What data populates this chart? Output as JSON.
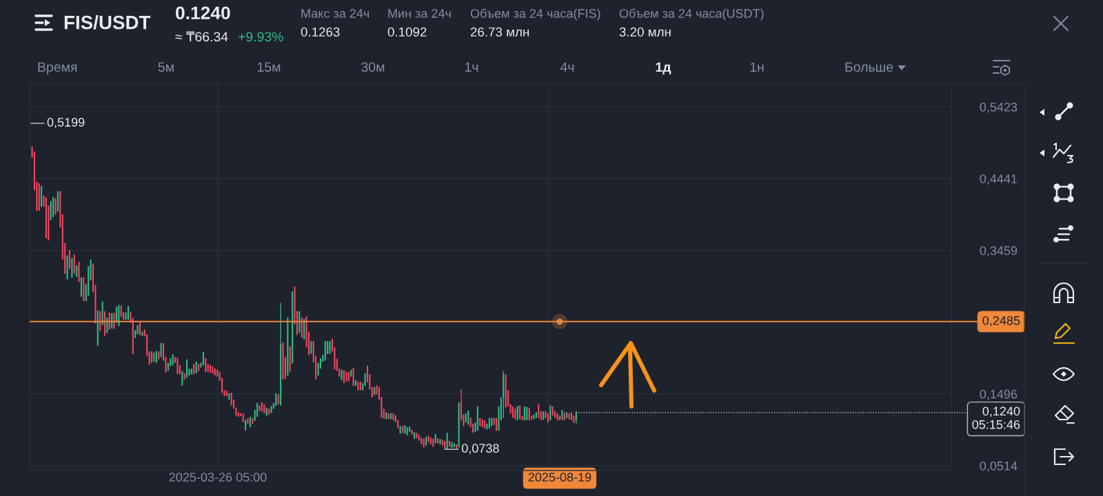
{
  "chart_data": {
    "type": "candlestick",
    "title": "FIS/USDT",
    "annotations": [
      "0.1240",
      "≈ ₸66.34",
      "+9.93%",
      "Макс за 24ч",
      "0.1263",
      "Мин за 24ч",
      "0.1092",
      "Объем за 24 часа(FIS)",
      "26.73 млн",
      "Объем за 24 часа(USDT)",
      "3.20 млн",
      "Время",
      "5м",
      "15м",
      "30м",
      "1ч",
      "4ч",
      "1д",
      "1н",
      "Больше",
      "0,5199",
      {
        "text": "0,0738",
        "x": "2025-07-01",
        "y": 0.0738
      }
    ],
    "x": [
      "2025-01-06",
      "2025-01-07",
      "2025-01-08",
      "2025-01-09",
      "2025-01-10",
      "2025-01-11",
      "2025-01-12",
      "2025-01-13",
      "2025-01-14",
      "2025-01-15",
      "2025-01-16",
      "2025-01-17",
      "2025-01-18",
      "2025-01-19",
      "2025-01-20",
      "2025-01-21",
      "2025-01-22",
      "2025-01-23",
      "2025-01-24",
      "2025-01-25",
      "2025-01-26",
      "2025-01-27",
      "2025-01-28",
      "2025-01-29",
      "2025-01-30",
      "2025-01-31",
      "2025-02-01",
      "2025-02-02",
      "2025-02-03",
      "2025-02-04",
      "2025-02-05",
      "2025-02-06",
      "2025-02-07",
      "2025-02-08",
      "2025-02-09",
      "2025-02-10",
      "2025-02-11",
      "2025-02-12",
      "2025-02-13",
      "2025-02-14",
      "2025-02-15",
      "2025-02-16",
      "2025-02-17",
      "2025-02-18",
      "2025-02-19",
      "2025-02-20",
      "2025-02-21",
      "2025-02-22",
      "2025-02-23",
      "2025-02-24",
      "2025-02-25",
      "2025-02-26",
      "2025-02-27",
      "2025-02-28",
      "2025-03-01",
      "2025-03-02",
      "2025-03-03",
      "2025-03-04",
      "2025-03-05",
      "2025-03-06",
      "2025-03-07",
      "2025-03-08",
      "2025-03-09",
      "2025-03-10",
      "2025-03-11",
      "2025-03-12",
      "2025-03-13",
      "2025-03-14",
      "2025-03-15",
      "2025-03-16",
      "2025-03-17",
      "2025-03-18",
      "2025-03-19",
      "2025-03-20",
      "2025-03-21",
      "2025-03-22",
      "2025-03-23",
      "2025-03-24",
      "2025-03-25",
      "2025-03-26",
      "2025-03-27",
      "2025-03-28",
      "2025-03-29",
      "2025-03-30",
      "2025-03-31",
      "2025-04-01",
      "2025-04-02",
      "2025-04-03",
      "2025-04-04",
      "2025-04-05",
      "2025-04-06",
      "2025-04-07",
      "2025-04-08",
      "2025-04-09",
      "2025-04-10",
      "2025-04-11",
      "2025-04-12",
      "2025-04-13",
      "2025-04-14",
      "2025-04-15",
      "2025-04-16",
      "2025-04-17",
      "2025-04-18",
      "2025-04-19",
      "2025-04-20",
      "2025-04-21",
      "2025-04-22",
      "2025-04-23",
      "2025-04-24",
      "2025-04-25",
      "2025-04-26",
      "2025-04-27",
      "2025-04-28",
      "2025-04-29",
      "2025-04-30",
      "2025-05-01",
      "2025-05-02",
      "2025-05-03",
      "2025-05-04",
      "2025-05-05",
      "2025-05-06",
      "2025-05-07",
      "2025-05-08",
      "2025-05-09",
      "2025-05-10",
      "2025-05-11",
      "2025-05-12",
      "2025-05-13",
      "2025-05-14",
      "2025-05-15",
      "2025-05-16",
      "2025-05-17",
      "2025-05-18",
      "2025-05-19",
      "2025-05-20",
      "2025-05-21",
      "2025-05-22",
      "2025-05-23",
      "2025-05-24",
      "2025-05-25",
      "2025-05-26",
      "2025-05-27",
      "2025-05-28",
      "2025-05-29",
      "2025-05-30",
      "2025-05-31",
      "2025-06-01",
      "2025-06-02",
      "2025-06-03",
      "2025-06-04",
      "2025-06-05",
      "2025-06-06",
      "2025-06-07",
      "2025-06-08",
      "2025-06-09",
      "2025-06-10",
      "2025-06-11",
      "2025-06-12",
      "2025-06-13",
      "2025-06-14",
      "2025-06-15",
      "2025-06-16",
      "2025-06-17",
      "2025-06-18",
      "2025-06-19",
      "2025-06-20",
      "2025-06-21",
      "2025-06-22",
      "2025-06-23",
      "2025-06-24",
      "2025-06-25",
      "2025-06-26",
      "2025-06-27",
      "2025-06-28",
      "2025-06-29",
      "2025-06-30",
      "2025-07-01",
      "2025-07-02",
      "2025-07-03",
      "2025-07-04",
      "2025-07-05",
      "2025-07-06",
      "2025-07-07",
      "2025-07-08",
      "2025-07-09",
      "2025-07-10",
      "2025-07-11",
      "2025-07-12",
      "2025-07-13",
      "2025-07-14",
      "2025-07-15",
      "2025-07-16",
      "2025-07-17",
      "2025-07-18",
      "2025-07-19",
      "2025-07-20",
      "2025-07-21",
      "2025-07-22",
      "2025-07-23",
      "2025-07-24",
      "2025-07-25",
      "2025-07-26",
      "2025-07-27",
      "2025-07-28",
      "2025-07-29",
      "2025-07-30",
      "2025-07-31",
      "2025-08-01",
      "2025-08-02",
      "2025-08-03",
      "2025-08-04",
      "2025-08-05",
      "2025-08-06",
      "2025-08-07",
      "2025-08-08",
      "2025-08-09",
      "2025-08-10",
      "2025-08-11",
      "2025-08-12",
      "2025-08-13",
      "2025-08-14",
      "2025-08-15",
      "2025-08-16",
      "2025-08-17",
      "2025-08-18",
      "2025-08-19",
      "2025-08-20",
      "2025-08-21",
      "2025-08-22",
      "2025-08-23",
      "2025-08-24",
      "2025-08-25",
      "2025-08-26"
    ],
    "ohlc": [
      [
        0.4882,
        0.4882,
        0.4725,
        0.4725
      ],
      [
        0.481,
        0.481,
        0.4282,
        0.4282
      ],
      [
        0.4402,
        0.4402,
        0.4,
        0.4
      ],
      [
        0.4376,
        0.4376,
        0.4,
        0.4
      ],
      [
        0.4056,
        0.4339,
        0.4056,
        0.4339
      ],
      [
        0.4207,
        0.4207,
        0.4056,
        0.4056
      ],
      [
        0.4182,
        0.4182,
        0.3623,
        0.3623
      ],
      [
        0.4072,
        0.4072,
        0.3595,
        0.3595
      ],
      [
        0.3874,
        0.4135,
        0.3874,
        0.4135
      ],
      [
        0.3915,
        0.4188,
        0.3915,
        0.4188
      ],
      [
        0.4172,
        0.4172,
        0.3946,
        0.3946
      ],
      [
        0.3993,
        0.427,
        0.3993,
        0.427
      ],
      [
        0.427,
        0.427,
        0.3774,
        0.3774
      ],
      [
        0.3953,
        0.3953,
        0.3334,
        0.3334
      ],
      [
        0.356,
        0.356,
        0.3139,
        0.3139
      ],
      [
        0.3061,
        0.3391,
        0.3061,
        0.3391
      ],
      [
        0.3466,
        0.3466,
        0.3208,
        0.3208
      ],
      [
        0.3083,
        0.3356,
        0.3083,
        0.3356
      ],
      [
        0.3403,
        0.3403,
        0.3139,
        0.3139
      ],
      [
        0.3098,
        0.3255,
        0.3098,
        0.3255
      ],
      [
        0.3303,
        0.3303,
        0.3026,
        0.3026
      ],
      [
        0.2825,
        0.3089,
        0.2825,
        0.3089
      ],
      [
        0.3089,
        0.3089,
        0.2769,
        0.2769
      ],
      [
        0.2763,
        0.2995,
        0.2763,
        0.2995
      ],
      [
        0.2838,
        0.3246,
        0.2838,
        0.3246
      ],
      [
        0.3051,
        0.3334,
        0.3051,
        0.3334
      ],
      [
        0.3277,
        0.3277,
        0.2888,
        0.2888
      ],
      [
        0.2989,
        0.2989,
        0.2455,
        0.2455
      ],
      [
        0.2156,
        0.2637,
        0.2156,
        0.2637
      ],
      [
        0.2627,
        0.2627,
        0.2354,
        0.2354
      ],
      [
        0.2439,
        0.2759,
        0.2439,
        0.2759
      ],
      [
        0.2627,
        0.2627,
        0.2292,
        0.2292
      ],
      [
        0.2329,
        0.254,
        0.2329,
        0.254
      ],
      [
        0.2606,
        0.2606,
        0.2376,
        0.2376
      ],
      [
        0.2392,
        0.2602,
        0.2392,
        0.2602
      ],
      [
        0.2606,
        0.2606,
        0.2386,
        0.2386
      ],
      [
        0.247,
        0.269,
        0.247,
        0.269
      ],
      [
        0.2423,
        0.2712,
        0.2423,
        0.2712
      ],
      [
        0.2706,
        0.2706,
        0.2549,
        0.2549
      ],
      [
        0.2612,
        0.2612,
        0.2511,
        0.2511
      ],
      [
        0.2511,
        0.2612,
        0.2511,
        0.2612
      ],
      [
        0.2511,
        0.27,
        0.2511,
        0.27
      ],
      [
        0.2618,
        0.2618,
        0.247,
        0.247
      ],
      [
        0.2533,
        0.2533,
        0.204,
        0.204
      ],
      [
        0.226,
        0.2367,
        0.226,
        0.2367
      ],
      [
        0.2314,
        0.2439,
        0.2314,
        0.2439
      ],
      [
        0.2492,
        0.2492,
        0.2298,
        0.2298
      ],
      [
        0.2292,
        0.2345,
        0.2292,
        0.2345
      ],
      [
        0.2376,
        0.2376,
        0.2282,
        0.2282
      ],
      [
        0.2313,
        0.2313,
        0.2015,
        0.2015
      ],
      [
        0.2078,
        0.2078,
        0.1896,
        0.1896
      ],
      [
        0.2078,
        0.2078,
        0.1921,
        0.1921
      ],
      [
        0.1937,
        0.2062,
        0.1937,
        0.2062
      ],
      [
        0.1921,
        0.2084,
        0.1921,
        0.2084
      ],
      [
        0.2078,
        0.2078,
        0.1968,
        0.1968
      ],
      [
        0.1999,
        0.2194,
        0.1999,
        0.2194
      ],
      [
        0.2188,
        0.2188,
        0.1952,
        0.1952
      ],
      [
        0.1999,
        0.1999,
        0.1789,
        0.1789
      ],
      [
        0.1811,
        0.1921,
        0.1811,
        0.1921
      ],
      [
        0.1874,
        0.1984,
        0.1874,
        0.1984
      ],
      [
        0.189,
        0.2037,
        0.189,
        0.2037
      ],
      [
        0.1999,
        0.1999,
        0.1921,
        0.1921
      ],
      [
        0.199,
        0.199,
        0.177,
        0.177
      ],
      [
        0.189,
        0.189,
        0.1764,
        0.1764
      ],
      [
        0.1613,
        0.1811,
        0.1613,
        0.1811
      ],
      [
        0.178,
        0.178,
        0.1695,
        0.1695
      ],
      [
        0.1717,
        0.1968,
        0.1717,
        0.1968
      ],
      [
        0.1748,
        0.1842,
        0.1748,
        0.1842
      ],
      [
        0.1764,
        0.1842,
        0.1764,
        0.1842
      ],
      [
        0.1905,
        0.1905,
        0.1764,
        0.1764
      ],
      [
        0.178,
        0.1937,
        0.178,
        0.1937
      ],
      [
        0.1905,
        0.1905,
        0.1811,
        0.1811
      ],
      [
        0.1858,
        0.1921,
        0.1858,
        0.1921
      ],
      [
        0.189,
        0.2069,
        0.189,
        0.2069
      ],
      [
        0.1984,
        0.1984,
        0.1795,
        0.1795
      ],
      [
        0.1905,
        0.1905,
        0.1795,
        0.1795
      ],
      [
        0.189,
        0.189,
        0.1789,
        0.1789
      ],
      [
        0.1874,
        0.1874,
        0.1773,
        0.1773
      ],
      [
        0.1842,
        0.1842,
        0.1748,
        0.1748
      ],
      [
        0.1827,
        0.1827,
        0.1733,
        0.1733
      ],
      [
        0.1795,
        0.1795,
        0.1676,
        0.1676
      ],
      [
        0.1716,
        0.1716,
        0.1512,
        0.1512
      ],
      [
        0.155,
        0.155,
        0.1465,
        0.1465
      ],
      [
        0.1537,
        0.1537,
        0.1465,
        0.1465
      ],
      [
        0.1418,
        0.1506,
        0.1418,
        0.1506
      ],
      [
        0.1512,
        0.1512,
        0.1339,
        0.1339
      ],
      [
        0.1418,
        0.1418,
        0.1292,
        0.1292
      ],
      [
        0.1308,
        0.1308,
        0.1198,
        0.1198
      ],
      [
        0.1245,
        0.1245,
        0.1182,
        0.1182
      ],
      [
        0.123,
        0.123,
        0.1192,
        0.1192
      ],
      [
        0.1224,
        0.1224,
        0.111,
        0.111
      ],
      [
        0.0994,
        0.1142,
        0.0994,
        0.1142
      ],
      [
        0.1161,
        0.1161,
        0.1088,
        0.1088
      ],
      [
        0.1041,
        0.1182,
        0.1041,
        0.1182
      ],
      [
        0.1167,
        0.1167,
        0.1088,
        0.1088
      ],
      [
        0.1129,
        0.1277,
        0.1129,
        0.1277
      ],
      [
        0.1182,
        0.1371,
        0.1182,
        0.1371
      ],
      [
        0.1339,
        0.1339,
        0.1261,
        0.1261
      ],
      [
        0.138,
        0.138,
        0.1255,
        0.1255
      ],
      [
        0.1355,
        0.1355,
        0.123,
        0.123
      ],
      [
        0.1198,
        0.1308,
        0.1198,
        0.1308
      ],
      [
        0.1292,
        0.1292,
        0.1214,
        0.1214
      ],
      [
        0.1236,
        0.133,
        0.1236,
        0.133
      ],
      [
        0.1292,
        0.1371,
        0.1292,
        0.1371
      ],
      [
        0.133,
        0.1506,
        0.133,
        0.1506
      ],
      [
        0.1487,
        0.1487,
        0.1355,
        0.1355
      ],
      [
        0.1339,
        0.2743,
        0.1339,
        0.2172
      ],
      [
        0.2197,
        0.2197,
        0.1694,
        0.1694
      ],
      [
        0.1999,
        0.1999,
        0.1701,
        0.1701
      ],
      [
        0.1748,
        0.2542,
        0.1748,
        0.2542
      ],
      [
        0.2146,
        0.2146,
        0.1801,
        0.1801
      ],
      [
        0.1914,
        0.29,
        0.1914,
        0.29
      ],
      [
        0.2963,
        0.2963,
        0.2448,
        0.2448
      ],
      [
        0.2627,
        0.2627,
        0.2303,
        0.2303
      ],
      [
        0.2335,
        0.2627,
        0.2335,
        0.2627
      ],
      [
        0.2542,
        0.2542,
        0.2266,
        0.2266
      ],
      [
        0.2241,
        0.2523,
        0.2241,
        0.2523
      ],
      [
        0.2555,
        0.2555,
        0.2134,
        0.2134
      ],
      [
        0.2344,
        0.2344,
        0.203,
        0.203
      ],
      [
        0.2046,
        0.2219,
        0.2046,
        0.2219
      ],
      [
        0.2219,
        0.2219,
        0.1927,
        0.1927
      ],
      [
        0.2015,
        0.2015,
        0.1694,
        0.1694
      ],
      [
        0.1748,
        0.192,
        0.1748,
        0.192
      ],
      [
        0.1842,
        0.1983,
        0.1842,
        0.1983
      ],
      [
        0.1936,
        0.203,
        0.1936,
        0.203
      ],
      [
        0.1952,
        0.2219,
        0.1952,
        0.2219
      ],
      [
        0.204,
        0.2219,
        0.204,
        0.2219
      ],
      [
        0.2046,
        0.2219,
        0.2046,
        0.2219
      ],
      [
        0.225,
        0.225,
        0.2077,
        0.2077
      ],
      [
        0.2134,
        0.2134,
        0.1832,
        0.1832
      ],
      [
        0.1977,
        0.1977,
        0.181,
        0.181
      ],
      [
        0.1842,
        0.1842,
        0.1732,
        0.1732
      ],
      [
        0.1685,
        0.1826,
        0.1685,
        0.1826
      ],
      [
        0.182,
        0.182,
        0.1644,
        0.1644
      ],
      [
        0.1801,
        0.1801,
        0.1669,
        0.1669
      ],
      [
        0.1795,
        0.1795,
        0.1669,
        0.1669
      ],
      [
        0.1732,
        0.1826,
        0.1732,
        0.1826
      ],
      [
        0.1851,
        0.1851,
        0.1606,
        0.1606
      ],
      [
        0.1606,
        0.1685,
        0.1606,
        0.1685
      ],
      [
        0.1663,
        0.1663,
        0.1544,
        0.1544
      ],
      [
        0.1663,
        0.1663,
        0.1544,
        0.1544
      ],
      [
        0.1544,
        0.1644,
        0.1544,
        0.1644
      ],
      [
        0.1606,
        0.1779,
        0.1606,
        0.1779
      ],
      [
        0.1883,
        0.1883,
        0.1653,
        0.1653
      ],
      [
        0.1763,
        0.1763,
        0.1559,
        0.1559
      ],
      [
        0.1591,
        0.1591,
        0.1449,
        0.1449
      ],
      [
        0.1481,
        0.1591,
        0.1481,
        0.1591
      ],
      [
        0.1613,
        0.1613,
        0.1487,
        0.1487
      ],
      [
        0.1591,
        0.1591,
        0.1418,
        0.1418
      ],
      [
        0.1456,
        0.1456,
        0.1167,
        0.1167
      ],
      [
        0.1292,
        0.1292,
        0.1161,
        0.1161
      ],
      [
        0.1151,
        0.1245,
        0.1151,
        0.1245
      ],
      [
        0.123,
        0.123,
        0.1151,
        0.1151
      ],
      [
        0.1151,
        0.123,
        0.1151,
        0.123
      ],
      [
        0.123,
        0.123,
        0.1135,
        0.1135
      ],
      [
        0.1204,
        0.1204,
        0.111,
        0.111
      ],
      [
        0.1135,
        0.1135,
        0.1025,
        0.1025
      ],
      [
        0.0953,
        0.1057,
        0.0953,
        0.1057
      ],
      [
        0.1057,
        0.1057,
        0.0963,
        0.0963
      ],
      [
        0.0953,
        0.1066,
        0.0953,
        0.1066
      ],
      [
        0.0931,
        0.1041,
        0.0931,
        0.1041
      ],
      [
        0.0978,
        0.1047,
        0.0978,
        0.1047
      ],
      [
        0.1004,
        0.1004,
        0.0941,
        0.0941
      ],
      [
        0.0884,
        0.0972,
        0.0884,
        0.0972
      ],
      [
        0.0963,
        0.0963,
        0.089,
        0.089
      ],
      [
        0.0941,
        0.0941,
        0.0859,
        0.0859
      ],
      [
        0.09,
        0.09,
        0.0806,
        0.0806
      ],
      [
        0.0884,
        0.0884,
        0.0765,
        0.0765
      ],
      [
        0.079,
        0.0909,
        0.079,
        0.0909
      ],
      [
        0.0925,
        0.0925,
        0.0837,
        0.0837
      ],
      [
        0.09,
        0.09,
        0.0806,
        0.0806
      ],
      [
        0.0884,
        0.0884,
        0.0774,
        0.0774
      ],
      [
        0.0821,
        0.0947,
        0.0821,
        0.0947
      ],
      [
        0.089,
        0.089,
        0.0821,
        0.0821
      ],
      [
        0.0806,
        0.0878,
        0.0806,
        0.0878
      ],
      [
        0.0868,
        0.0868,
        0.079,
        0.079
      ],
      [
        0.0853,
        0.0853,
        0.0738,
        0.0743
      ],
      [
        0.0743,
        0.0963,
        0.0743,
        0.0963
      ],
      [
        0.0853,
        0.0853,
        0.0774,
        0.0774
      ],
      [
        0.0759,
        0.0837,
        0.0759,
        0.0837
      ],
      [
        0.0765,
        0.0821,
        0.0765,
        0.0821
      ],
      [
        0.0806,
        0.0806,
        0.0743,
        0.0743
      ],
      [
        0.0765,
        0.138,
        0.0765,
        0.138
      ],
      [
        0.138,
        0.1559,
        0.1135,
        0.1135
      ],
      [
        0.1214,
        0.1214,
        0.1057,
        0.1057
      ],
      [
        0.1104,
        0.123,
        0.1104,
        0.123
      ],
      [
        0.1073,
        0.1267,
        0.1073,
        0.1267
      ],
      [
        0.1173,
        0.1173,
        0.1041,
        0.1041
      ],
      [
        0.1088,
        0.1088,
        0.0963,
        0.0963
      ],
      [
        0.0978,
        0.1104,
        0.0978,
        0.1104
      ],
      [
        0.0994,
        0.1324,
        0.0994,
        0.1324
      ],
      [
        0.1167,
        0.1167,
        0.1057,
        0.1057
      ],
      [
        0.1151,
        0.1151,
        0.1041,
        0.1041
      ],
      [
        0.1135,
        0.1135,
        0.1025,
        0.1025
      ],
      [
        0.101,
        0.1088,
        0.101,
        0.1088
      ],
      [
        0.1025,
        0.1167,
        0.1025,
        0.1167
      ],
      [
        0.1057,
        0.1167,
        0.1057,
        0.1167
      ],
      [
        0.1167,
        0.1167,
        0.1073,
        0.1073
      ],
      [
        0.1167,
        0.1167,
        0.0994,
        0.0994
      ],
      [
        0.0994,
        0.1324,
        0.0994,
        0.1324
      ],
      [
        0.1135,
        0.1449,
        0.1135,
        0.1449
      ],
      [
        0.1449,
        0.181,
        0.1167,
        0.1763
      ],
      [
        0.1763,
        0.1763,
        0.1308,
        0.1308
      ],
      [
        0.1544,
        0.1544,
        0.1324,
        0.1324
      ],
      [
        0.1355,
        0.1355,
        0.123,
        0.123
      ],
      [
        0.1324,
        0.1324,
        0.1167,
        0.1167
      ],
      [
        0.1292,
        0.1292,
        0.1151,
        0.1151
      ],
      [
        0.1135,
        0.133,
        0.1135,
        0.133
      ],
      [
        0.1339,
        0.1339,
        0.1151,
        0.1151
      ],
      [
        0.1198,
        0.1198,
        0.1135,
        0.1135
      ],
      [
        0.1135,
        0.1324,
        0.1135,
        0.1324
      ],
      [
        0.1135,
        0.1318,
        0.1135,
        0.1318
      ],
      [
        0.1308,
        0.1308,
        0.1135,
        0.1135
      ],
      [
        0.1198,
        0.1198,
        0.1142,
        0.1142
      ],
      [
        0.1151,
        0.1214,
        0.1151,
        0.1214
      ],
      [
        0.1167,
        0.1245,
        0.1167,
        0.1245
      ],
      [
        0.1361,
        0.1361,
        0.1167,
        0.1167
      ],
      [
        0.1261,
        0.1261,
        0.1135,
        0.1135
      ],
      [
        0.1142,
        0.1255,
        0.1142,
        0.1255
      ],
      [
        0.1261,
        0.1261,
        0.1167,
        0.1167
      ],
      [
        0.123,
        0.123,
        0.1104,
        0.1104
      ],
      [
        0.1135,
        0.1339,
        0.1135,
        0.1339
      ],
      [
        0.1324,
        0.1324,
        0.1198,
        0.1198
      ],
      [
        0.1261,
        0.1261,
        0.1167,
        0.1167
      ],
      [
        0.123,
        0.123,
        0.1135,
        0.1135
      ],
      [
        0.1198,
        0.1198,
        0.1135,
        0.1135
      ],
      [
        0.1142,
        0.1277,
        0.1142,
        0.1277
      ],
      [
        0.1245,
        0.1245,
        0.1135,
        0.1135
      ],
      [
        0.1167,
        0.1245,
        0.1167,
        0.1245
      ],
      [
        0.123,
        0.123,
        0.1151,
        0.1151
      ],
      [
        0.1245,
        0.1245,
        0.1135,
        0.1135
      ],
      [
        0.1198,
        0.1198,
        0.1098,
        0.1098
      ],
      [
        0.1135,
        0.1263,
        0.1092,
        0.124
      ]
    ],
    "colors": [
      "#f6465d",
      "#f6465d",
      "#f6465d",
      "#f6465d",
      "#2ebd85",
      "#f6465d",
      "#f6465d",
      "#f6465d",
      "#2ebd85",
      "#2ebd85",
      "#f6465d",
      "#2ebd85",
      "#f6465d",
      "#f6465d",
      "#f6465d",
      "#2ebd85",
      "#f6465d",
      "#2ebd85",
      "#f6465d",
      "#2ebd85",
      "#f6465d",
      "#2ebd85",
      "#f6465d",
      "#2ebd85",
      "#2ebd85",
      "#2ebd85",
      "#f6465d",
      "#f6465d",
      "#2ebd85",
      "#f6465d",
      "#2ebd85",
      "#f6465d",
      "#2ebd85",
      "#f6465d",
      "#2ebd85",
      "#f6465d",
      "#2ebd85",
      "#2ebd85",
      "#f6465d",
      "#f6465d",
      "#2ebd85",
      "#2ebd85",
      "#f6465d",
      "#f6465d",
      "#2ebd85",
      "#2ebd85",
      "#f6465d",
      "#2ebd85",
      "#f6465d",
      "#f6465d",
      "#f6465d",
      "#f6465d",
      "#2ebd85",
      "#2ebd85",
      "#f6465d",
      "#2ebd85",
      "#f6465d",
      "#f6465d",
      "#2ebd85",
      "#2ebd85",
      "#2ebd85",
      "#f6465d",
      "#f6465d",
      "#f6465d",
      "#2ebd85",
      "#f6465d",
      "#2ebd85",
      "#2ebd85",
      "#2ebd85",
      "#f6465d",
      "#2ebd85",
      "#f6465d",
      "#2ebd85",
      "#2ebd85",
      "#f6465d",
      "#f6465d",
      "#f6465d",
      "#f6465d",
      "#f6465d",
      "#f6465d",
      "#f6465d",
      "#f6465d",
      "#f6465d",
      "#f6465d",
      "#2ebd85",
      "#f6465d",
      "#f6465d",
      "#f6465d",
      "#f6465d",
      "#f6465d",
      "#f6465d",
      "#2ebd85",
      "#f6465d",
      "#2ebd85",
      "#f6465d",
      "#2ebd85",
      "#2ebd85",
      "#f6465d",
      "#f6465d",
      "#f6465d",
      "#2ebd85",
      "#f6465d",
      "#2ebd85",
      "#2ebd85",
      "#2ebd85",
      "#f6465d",
      "#2ebd85",
      "#f6465d",
      "#f6465d",
      "#2ebd85",
      "#f6465d",
      "#2ebd85",
      "#f6465d",
      "#f6465d",
      "#2ebd85",
      "#f6465d",
      "#2ebd85",
      "#f6465d",
      "#f6465d",
      "#2ebd85",
      "#f6465d",
      "#f6465d",
      "#2ebd85",
      "#2ebd85",
      "#2ebd85",
      "#2ebd85",
      "#2ebd85",
      "#2ebd85",
      "#f6465d",
      "#f6465d",
      "#f6465d",
      "#f6465d",
      "#2ebd85",
      "#f6465d",
      "#f6465d",
      "#f6465d",
      "#2ebd85",
      "#f6465d",
      "#2ebd85",
      "#f6465d",
      "#f6465d",
      "#2ebd85",
      "#2ebd85",
      "#f6465d",
      "#f6465d",
      "#f6465d",
      "#2ebd85",
      "#f6465d",
      "#f6465d",
      "#f6465d",
      "#f6465d",
      "#2ebd85",
      "#f6465d",
      "#2ebd85",
      "#f6465d",
      "#f6465d",
      "#f6465d",
      "#2ebd85",
      "#f6465d",
      "#2ebd85",
      "#2ebd85",
      "#2ebd85",
      "#f6465d",
      "#2ebd85",
      "#f6465d",
      "#f6465d",
      "#f6465d",
      "#f6465d",
      "#2ebd85",
      "#f6465d",
      "#f6465d",
      "#f6465d",
      "#2ebd85",
      "#f6465d",
      "#2ebd85",
      "#f6465d",
      "#f6465d",
      "#2ebd85",
      "#f6465d",
      "#2ebd85",
      "#2ebd85",
      "#f6465d",
      "#2ebd85",
      "#f6465d",
      "#f6465d",
      "#2ebd85",
      "#2ebd85",
      "#f6465d",
      "#f6465d",
      "#2ebd85",
      "#2ebd85",
      "#f6465d",
      "#f6465d",
      "#f6465d",
      "#2ebd85",
      "#2ebd85",
      "#2ebd85",
      "#f6465d",
      "#f6465d",
      "#2ebd85",
      "#2ebd85",
      "#2ebd85",
      "#f6465d",
      "#f6465d",
      "#f6465d",
      "#f6465d",
      "#f6465d",
      "#2ebd85",
      "#f6465d",
      "#f6465d",
      "#2ebd85",
      "#2ebd85",
      "#f6465d",
      "#f6465d",
      "#2ebd85",
      "#2ebd85",
      "#f6465d",
      "#f6465d",
      "#2ebd85",
      "#f6465d",
      "#f6465d",
      "#2ebd85",
      "#f6465d",
      "#f6465d",
      "#f6465d",
      "#f6465d",
      "#2ebd85",
      "#f6465d",
      "#2ebd85",
      "#f6465d",
      "#f6465d",
      "#f6465d",
      "#2ebd85"
    ],
    "xlim": [
      "2025-01-05T06:00",
      "2026-02-02T00:00"
    ],
    "ylim": [
      0.0448,
      0.5744
    ],
    "xticks": [
      {
        "value": "2025-03-26T05:00",
        "label": "2025-03-26 05:00"
      },
      {
        "value": "2025-08-14T05:00",
        "label": null
      },
      {
        "value": "2025-08-19",
        "label": "2025-08-19"
      }
    ],
    "yticks": [
      {
        "value": 0.5423,
        "label": "0,5423"
      },
      {
        "value": 0.4441,
        "label": "0,4441"
      },
      {
        "value": 0.3459,
        "label": "0,3459"
      },
      {
        "value": 0.1496,
        "label": "0,1496"
      },
      {
        "value": 0.0514,
        "label": "0,0514"
      }
    ],
    "grid": true,
    "ref_lines": [
      {
        "axis": "y",
        "value": 0.2485,
        "label": "0,2485",
        "color": "#f0883a",
        "line_style": "solid"
      },
      {
        "axis": "y",
        "value": 0.124,
        "label": "0,1240\n05:15:46",
        "color": "#b7bdc6",
        "line_style": "dotted"
      }
    ]
  }
}
